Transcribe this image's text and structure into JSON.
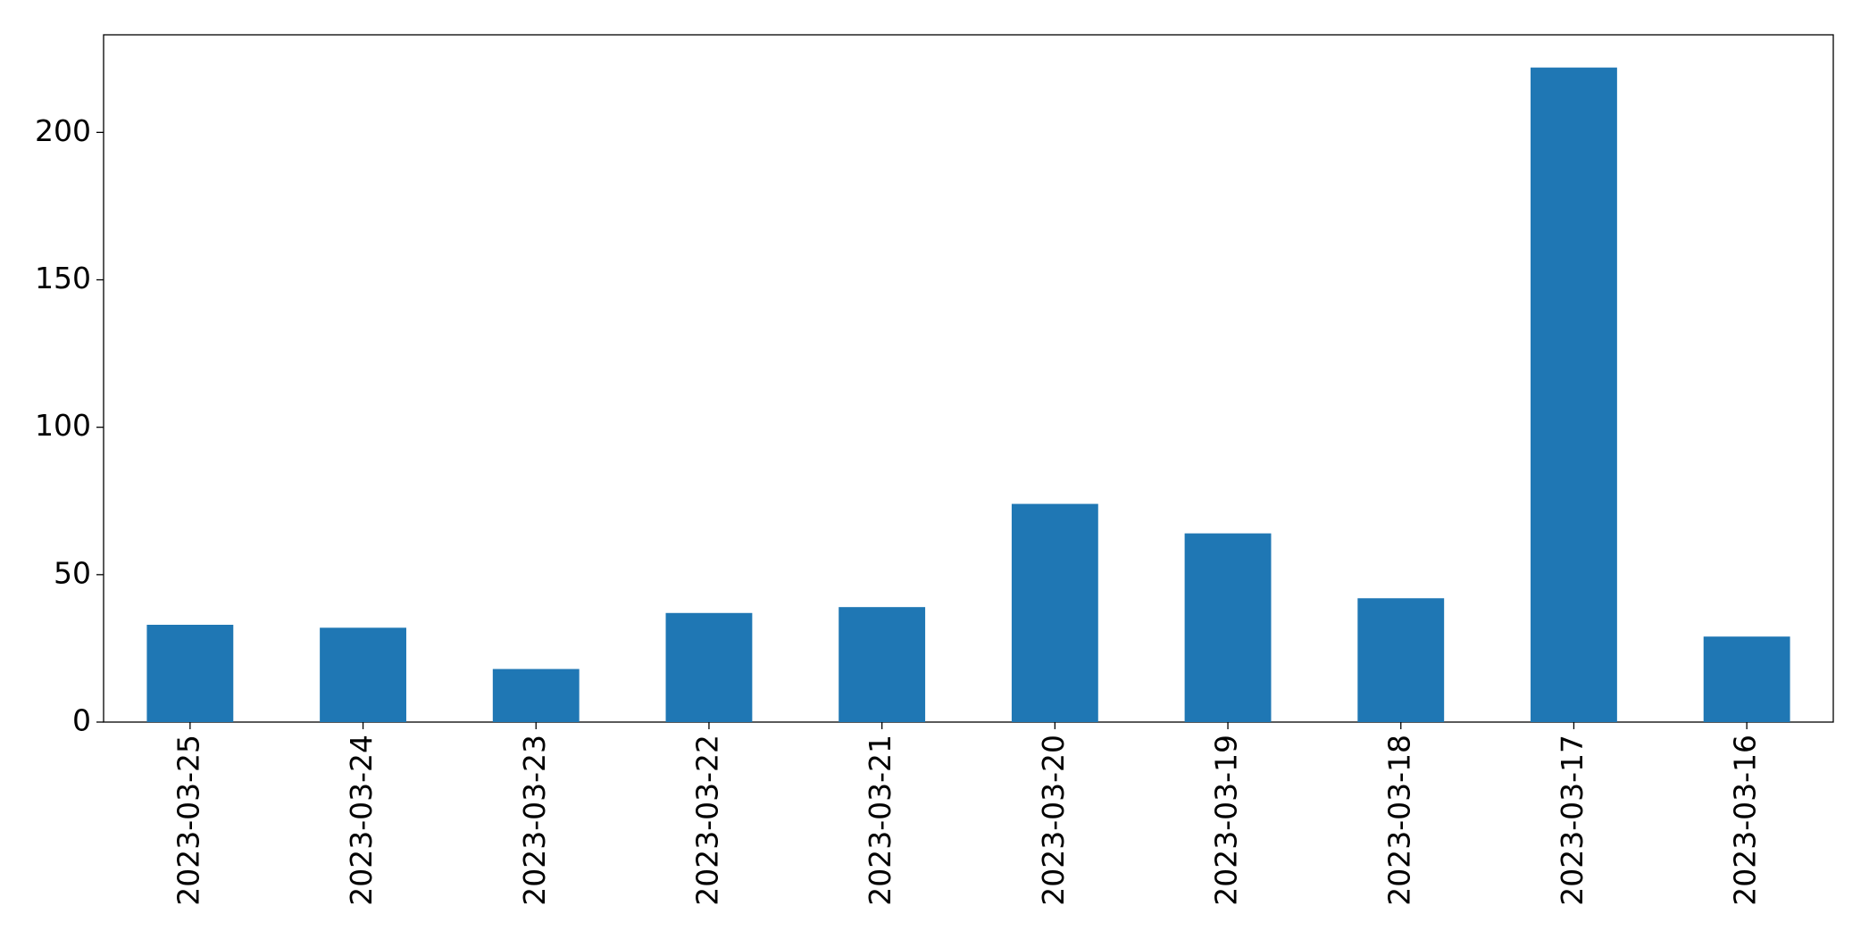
{
  "chart_data": {
    "type": "bar",
    "categories": [
      "2023-03-25",
      "2023-03-24",
      "2023-03-23",
      "2023-03-22",
      "2023-03-21",
      "2023-03-20",
      "2023-03-19",
      "2023-03-18",
      "2023-03-17",
      "2023-03-16"
    ],
    "values": [
      33,
      32,
      18,
      37,
      39,
      74,
      64,
      42,
      222,
      29
    ],
    "color": "#1f77b4",
    "ylim": [
      0,
      233.1
    ],
    "yticks": [
      0,
      50,
      100,
      150,
      200
    ],
    "grid": false
  }
}
